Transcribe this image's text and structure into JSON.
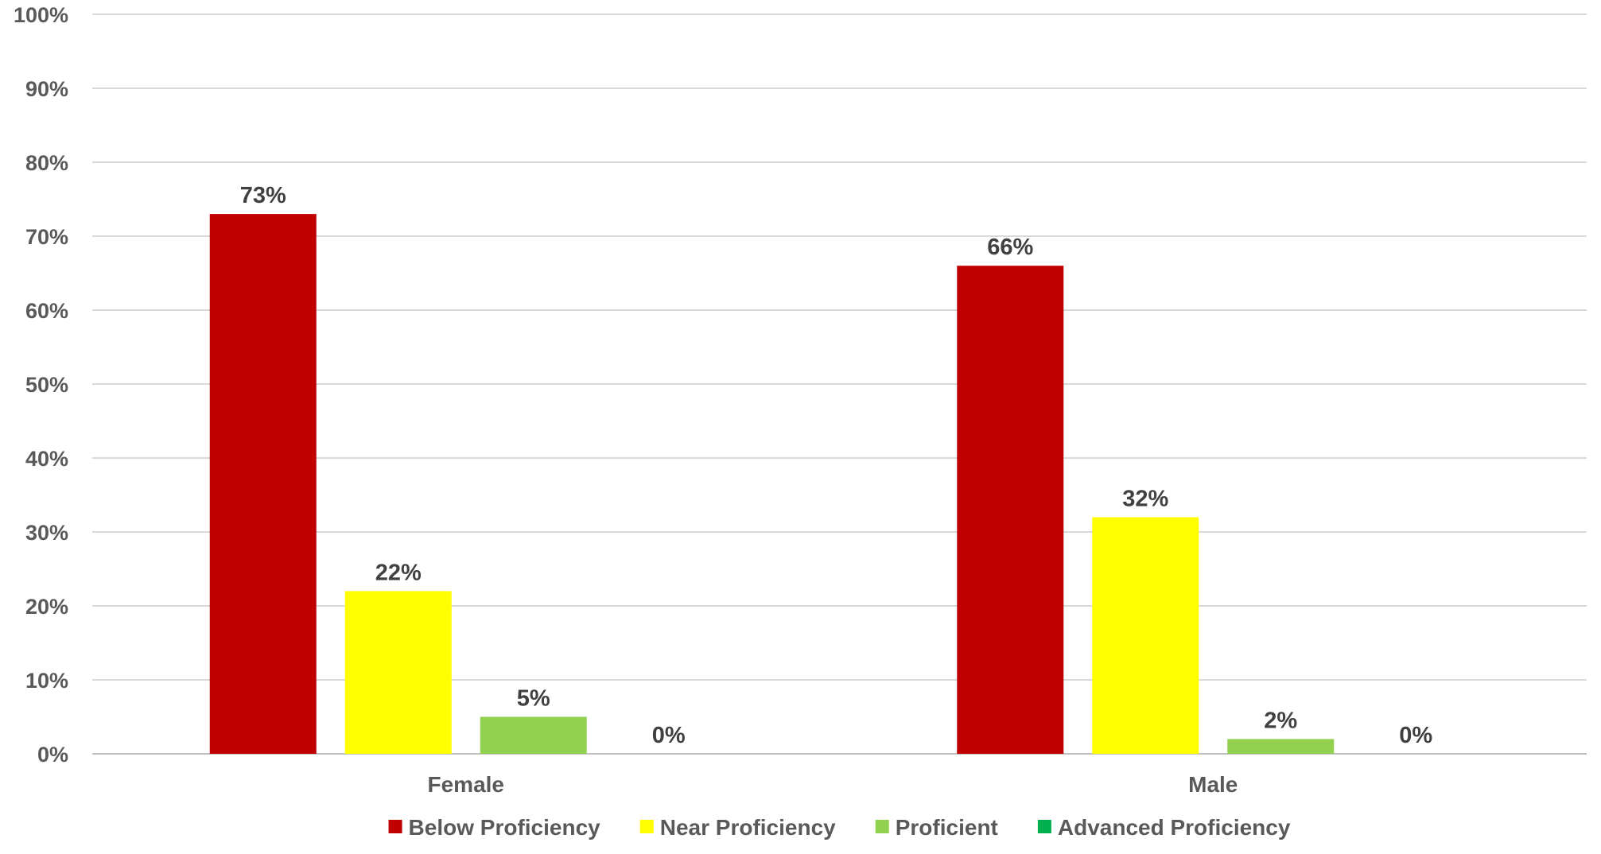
{
  "chart_data": {
    "type": "bar",
    "categories": [
      "Female",
      "Male"
    ],
    "series": [
      {
        "name": "Below Proficiency",
        "color": "#c00000",
        "values": [
          73,
          66
        ],
        "labels": [
          "73%",
          "66%"
        ]
      },
      {
        "name": "Near Proficiency",
        "color": "#ffff00",
        "values": [
          22,
          32
        ],
        "labels": [
          "22%",
          "32%"
        ]
      },
      {
        "name": "Proficient",
        "color": "#92d050",
        "values": [
          5,
          2
        ],
        "labels": [
          "5%",
          "2%"
        ]
      },
      {
        "name": "Advanced Proficiency",
        "color": "#00b050",
        "values": [
          0,
          0
        ],
        "labels": [
          "0%",
          "0%"
        ]
      }
    ],
    "ylim": [
      0,
      100
    ],
    "yticks": [
      "0%",
      "10%",
      "20%",
      "30%",
      "40%",
      "50%",
      "60%",
      "70%",
      "80%",
      "90%",
      "100%"
    ],
    "title": "",
    "xlabel": "",
    "ylabel": "",
    "grid": true,
    "legend": "bottom"
  }
}
